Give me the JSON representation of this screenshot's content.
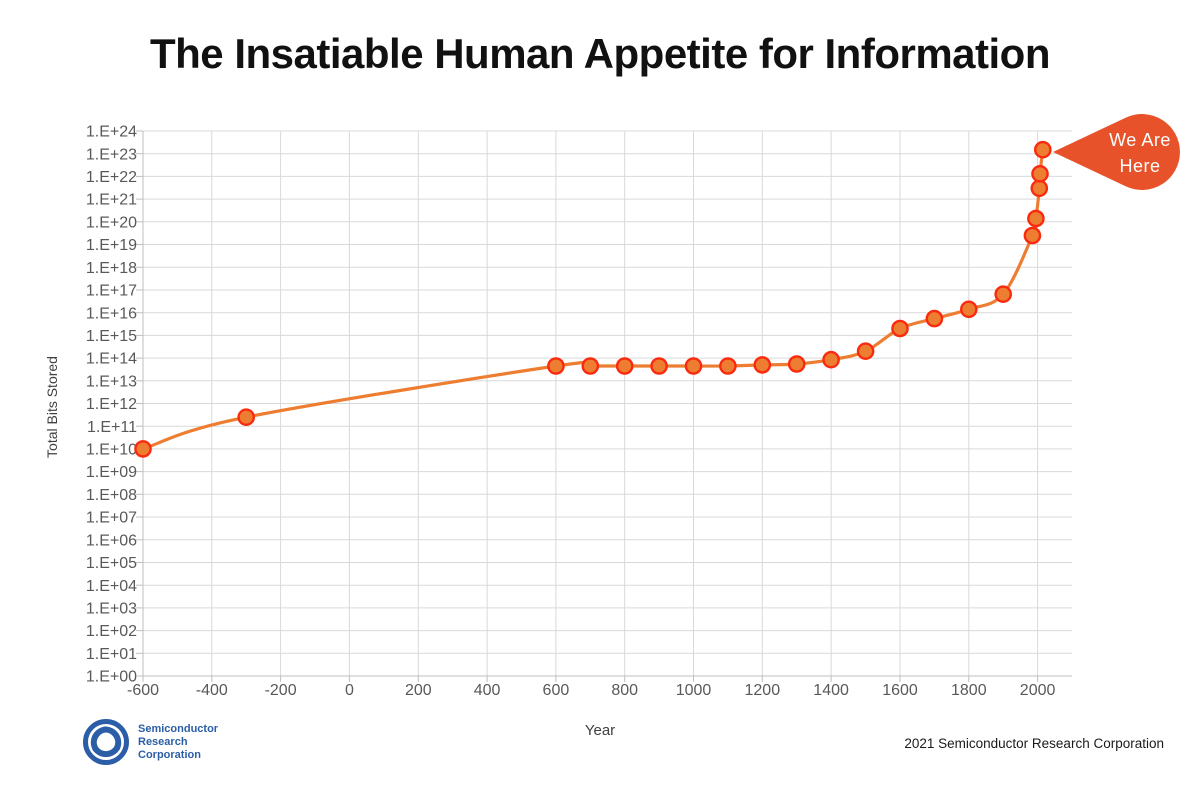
{
  "chart_data": {
    "type": "line",
    "title": "The Insatiable Human Appetite for Information",
    "xlabel": "Year",
    "ylabel": "Total Bits Stored",
    "xlim": [
      -600,
      2100
    ],
    "y_exponent_range": [
      0,
      24
    ],
    "grid": true,
    "x_ticks": [
      -600,
      -400,
      -200,
      0,
      200,
      400,
      600,
      800,
      1000,
      1200,
      1400,
      1600,
      1800,
      2000
    ],
    "y_tick_labels": [
      "1.E+00",
      "1.E+01",
      "1.E+02",
      "1.E+03",
      "1.E+04",
      "1.E+05",
      "1.E+06",
      "1.E+07",
      "1.E+08",
      "1.E+09",
      "1.E+10",
      "1.E+11",
      "1.E+12",
      "1.E+13",
      "1.E+14",
      "1.E+15",
      "1.E+16",
      "1.E+17",
      "1.E+18",
      "1.E+19",
      "1.E+20",
      "1.E+21",
      "1.E+22",
      "1.E+23",
      "1.E+24"
    ],
    "series": [
      {
        "name": "Total bits stored",
        "points": [
          {
            "year": -600,
            "bits": 10000000000.0
          },
          {
            "year": -300,
            "bits": 250000000000.0
          },
          {
            "year": 600,
            "bits": 45000000000000.0
          },
          {
            "year": 700,
            "bits": 45000000000000.0
          },
          {
            "year": 800,
            "bits": 45000000000000.0
          },
          {
            "year": 900,
            "bits": 45000000000000.0
          },
          {
            "year": 1000,
            "bits": 45000000000000.0
          },
          {
            "year": 1100,
            "bits": 45000000000000.0
          },
          {
            "year": 1200,
            "bits": 50000000000000.0
          },
          {
            "year": 1300,
            "bits": 55000000000000.0
          },
          {
            "year": 1400,
            "bits": 85000000000000.0
          },
          {
            "year": 1500,
            "bits": 200000000000000.0
          },
          {
            "year": 1600,
            "bits": 2000000000000000.0
          },
          {
            "year": 1700,
            "bits": 5500000000000000.0
          },
          {
            "year": 1800,
            "bits": 1.4e+16
          },
          {
            "year": 1900,
            "bits": 6.5e+16
          },
          {
            "year": 1985,
            "bits": 2.5e+19
          },
          {
            "year": 1995,
            "bits": 1.4e+20
          },
          {
            "year": 2005,
            "bits": 3e+21
          },
          {
            "year": 2007,
            "bits": 1.3e+22
          },
          {
            "year": 2015,
            "bits": 1.5e+23
          }
        ]
      }
    ],
    "annotation": {
      "label": "We Are Here",
      "lines": [
        "We Are",
        "Here"
      ],
      "year": 2015,
      "bits": 1.5e+23
    }
  },
  "footer": {
    "logo_lines": [
      "Semiconductor",
      "Research",
      "Corporation"
    ],
    "credit": "2021 Semiconductor Research Corporation"
  },
  "colors": {
    "line": "#ED7D31",
    "marker_fill": "#ED7D31",
    "marker_stroke": "#FA2A0F",
    "callout": "#E8522B",
    "callout_text": "#FFFFFF",
    "grid": "#D9D9D9",
    "axis_line": "#BFBFBF",
    "tick_text": "#595959",
    "axis_text": "#404040",
    "logo_blue": "#2B5EA7"
  }
}
